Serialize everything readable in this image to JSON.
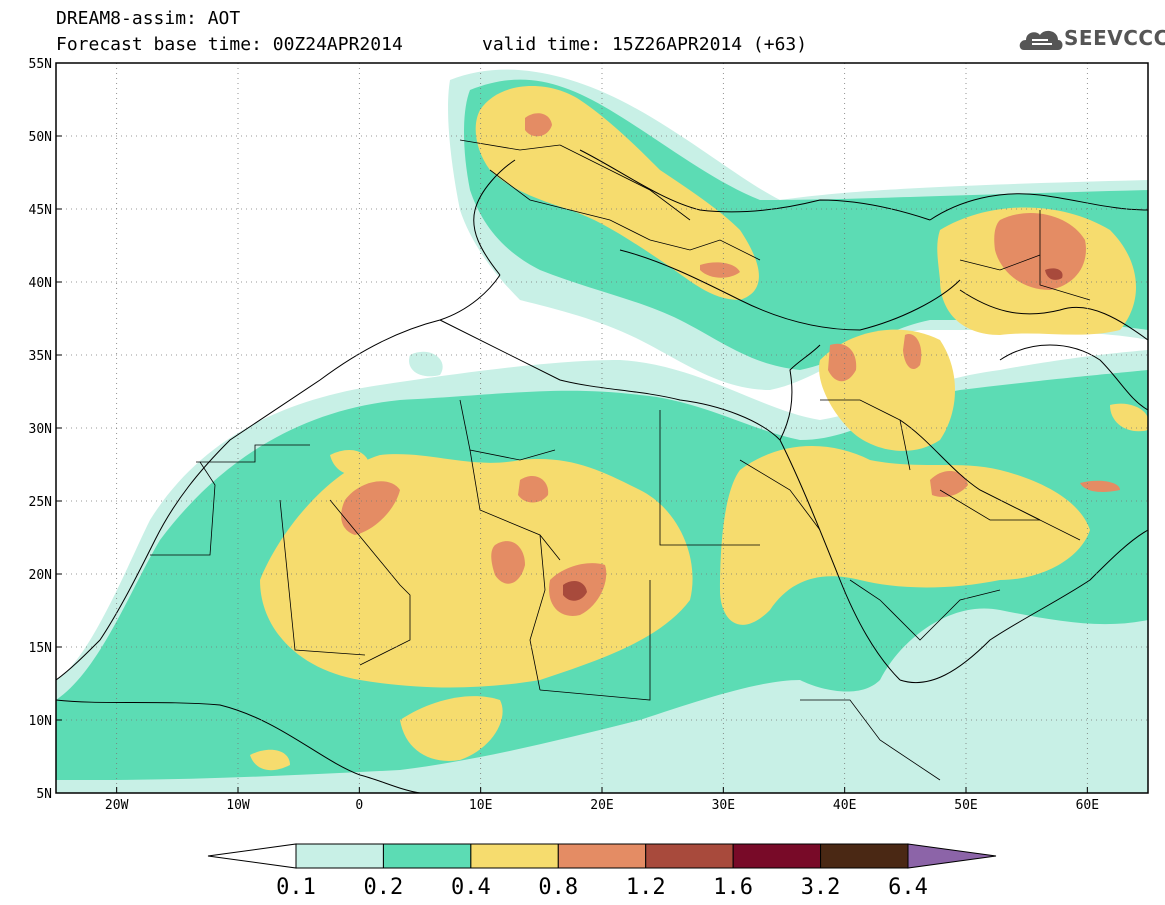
{
  "header": {
    "title_line1": "DREAM8-assim: AOT",
    "title_line2": "Forecast base time: 00Z24APR2014",
    "valid_time": "valid time: 15Z26APR2014 (+63)",
    "logo_text": "SEEVCCC",
    "logo_icon": "cloud-icon"
  },
  "map": {
    "lon_range": [
      -25,
      65
    ],
    "lat_range": [
      5,
      55
    ],
    "lon_ticks": [
      {
        "value": -20,
        "label": "20W"
      },
      {
        "value": -10,
        "label": "10W"
      },
      {
        "value": 0,
        "label": "0"
      },
      {
        "value": 10,
        "label": "10E"
      },
      {
        "value": 20,
        "label": "20E"
      },
      {
        "value": 30,
        "label": "30E"
      },
      {
        "value": 40,
        "label": "40E"
      },
      {
        "value": 50,
        "label": "50E"
      },
      {
        "value": 60,
        "label": "60E"
      }
    ],
    "lat_ticks": [
      {
        "value": 55,
        "label": "55N"
      },
      {
        "value": 50,
        "label": "50N"
      },
      {
        "value": 45,
        "label": "45N"
      },
      {
        "value": 40,
        "label": "40N"
      },
      {
        "value": 35,
        "label": "35N"
      },
      {
        "value": 30,
        "label": "30N"
      },
      {
        "value": 25,
        "label": "25N"
      },
      {
        "value": 20,
        "label": "20N"
      },
      {
        "value": 15,
        "label": "15N"
      },
      {
        "value": 10,
        "label": "10N"
      },
      {
        "value": 5,
        "label": "5N"
      }
    ],
    "grid": true
  },
  "colorbar": {
    "labels": [
      "0.1",
      "0.2",
      "0.4",
      "0.8",
      "1.2",
      "1.6",
      "3.2",
      "6.4"
    ],
    "colors": [
      "#ffffff",
      "#c8f0e6",
      "#5cdcb4",
      "#f6dc6e",
      "#e48c64",
      "#a84a3c",
      "#780a28",
      "#4a2814",
      "#8c64a8"
    ]
  }
}
